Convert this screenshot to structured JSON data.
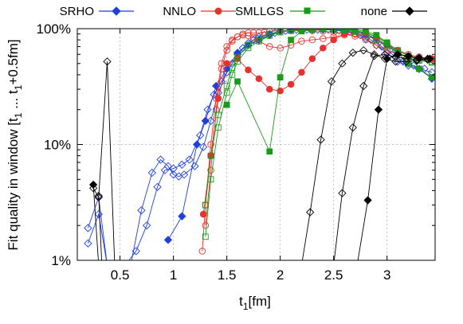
{
  "chart_data": {
    "type": "line",
    "title": "",
    "xlabel": "t",
    "xlabel_sub": "1",
    "xlabel_unit": "[fm]",
    "ylabel": "Fit quality in window [t",
    "ylabel_sub1": "1",
    "ylabel_mid": " ... t",
    "ylabel_sub2": "1",
    "ylabel_end": "+0.5fm]",
    "xlim": [
      0.1,
      3.45
    ],
    "ylim": [
      1,
      100
    ],
    "yscale": "log",
    "grid": true,
    "legend_position": "top",
    "x_ticks": [
      0.5,
      1,
      1.5,
      2,
      2.5,
      3
    ],
    "x_tick_labels": [
      "0.5",
      "1",
      "1.5",
      "2",
      "2.5",
      "3"
    ],
    "y_ticks": [
      1,
      10,
      100
    ],
    "y_tick_labels": [
      "1%",
      "10%",
      "100%"
    ],
    "series": [
      {
        "name": "SRHO",
        "color": "#1f3fdc",
        "marker": "diamond",
        "filled": true,
        "x": [
          0.95,
          1.08,
          1.22,
          1.3,
          1.4,
          1.5,
          1.6,
          1.7,
          1.8,
          1.9,
          2.0,
          2.1,
          2.2,
          2.3,
          2.4,
          2.5,
          2.6,
          2.7,
          2.8,
          2.9,
          3.0,
          3.1,
          3.2,
          3.3,
          3.42
        ],
        "y": [
          1.5,
          2.4,
          10,
          16,
          32,
          45,
          62,
          72,
          80,
          88,
          95,
          98,
          99,
          99,
          99,
          99,
          98,
          96,
          90,
          82,
          72,
          62,
          50,
          45,
          37
        ]
      },
      {
        "name": "",
        "color": "#1f3fdc",
        "marker": "diamond",
        "filled": false,
        "x": [
          0.2,
          0.3,
          0.38,
          0.5,
          0.6,
          0.7,
          0.8,
          0.88,
          0.95,
          1.0,
          1.05,
          1.1,
          1.2,
          1.28,
          1.35,
          1.42,
          1.5,
          1.6,
          1.7,
          1.8,
          1.9,
          2.0,
          2.1,
          2.2,
          2.3,
          2.4,
          2.5,
          2.6,
          2.7,
          2.8,
          2.9,
          3.0,
          3.1,
          3.2,
          3.3,
          3.42
        ],
        "y": [
          1.9,
          3.5,
          0.9,
          0.9,
          0.9,
          2.7,
          5.7,
          7.4,
          6.5,
          5.5,
          5.3,
          5.5,
          6.5,
          9.5,
          16,
          28,
          42,
          60,
          75,
          85,
          90,
          95,
          97,
          98,
          98,
          98,
          97,
          95,
          90,
          82,
          72,
          62,
          52,
          48,
          45,
          42
        ]
      },
      {
        "name": "",
        "color": "#1f3fdc",
        "marker": "diamond",
        "filled": false,
        "x": [
          0.2,
          0.3,
          0.38,
          0.55,
          0.65,
          0.75,
          0.85,
          0.92,
          1.0,
          1.08,
          1.15,
          1.25,
          1.32,
          1.38,
          1.45,
          1.55,
          1.65,
          1.75,
          1.85,
          1.95,
          2.05,
          2.15,
          2.25,
          2.35,
          2.45,
          2.55,
          2.65,
          2.75,
          2.85,
          2.95,
          3.05,
          3.15,
          3.25,
          3.35
        ],
        "y": [
          1.4,
          2.5,
          0.9,
          0.9,
          1.2,
          2.0,
          4.3,
          6.0,
          6.2,
          6.7,
          7.4,
          12,
          20,
          27,
          35,
          50,
          68,
          80,
          88,
          92,
          96,
          98,
          98,
          98,
          98,
          97,
          94,
          88,
          80,
          70,
          60,
          52,
          48,
          45
        ]
      },
      {
        "name": "NNLO",
        "color": "#e8302e",
        "marker": "circle",
        "filled": true,
        "x": [
          1.28,
          1.35,
          1.42,
          1.5,
          1.6,
          1.7,
          1.8,
          1.9,
          2.0,
          2.1,
          2.2,
          2.3,
          2.4,
          2.5,
          2.6,
          2.7,
          2.8,
          2.9,
          3.0,
          3.1,
          3.2,
          3.3,
          3.42
        ],
        "y": [
          2.5,
          8,
          25,
          50,
          55,
          44,
          37,
          30,
          29,
          33,
          42,
          55,
          68,
          80,
          90,
          95,
          93,
          85,
          75,
          65,
          58,
          56,
          55
        ]
      },
      {
        "name": "",
        "color": "#e8302e",
        "marker": "circle",
        "filled": false,
        "x": [
          1.27,
          1.3,
          1.35,
          1.4,
          1.45,
          1.5,
          1.55,
          1.6,
          1.65,
          1.7,
          1.75,
          1.8,
          1.9,
          2.0,
          2.1,
          2.2,
          2.3,
          2.4,
          2.5,
          2.6,
          2.7,
          2.8,
          2.9,
          3.0,
          3.1,
          3.2,
          3.3,
          3.42
        ],
        "y": [
          1.2,
          3,
          10,
          25,
          50,
          70,
          80,
          85,
          88,
          87,
          84,
          78,
          70,
          68,
          72,
          78,
          80,
          82,
          85,
          88,
          90,
          88,
          80,
          72,
          65,
          60,
          57,
          55
        ]
      },
      {
        "name": "",
        "color": "#e8302e",
        "marker": "circle",
        "filled": false,
        "x": [
          1.3,
          1.35,
          1.4,
          1.45,
          1.5,
          1.55,
          1.6,
          1.65,
          1.7,
          1.75,
          1.8,
          1.85,
          1.9,
          2.0,
          2.1,
          2.2,
          2.3,
          2.4,
          2.5,
          2.6,
          2.7,
          2.8,
          2.9,
          3.0,
          3.1,
          3.2,
          3.3,
          3.42
        ],
        "y": [
          2,
          6,
          20,
          45,
          65,
          78,
          85,
          90,
          92,
          92,
          92,
          93,
          95,
          96,
          96,
          96,
          96,
          95,
          93,
          90,
          86,
          80,
          72,
          65,
          60,
          57,
          55,
          54
        ]
      },
      {
        "name": "SMLLGS",
        "color": "#1a9a1a",
        "marker": "square",
        "filled": true,
        "x": [
          1.5,
          1.6,
          1.9,
          2.0,
          2.1,
          2.2,
          2.3,
          2.4,
          2.5,
          2.6,
          2.7,
          2.8,
          2.9,
          3.0,
          3.1,
          3.2,
          3.3,
          3.42
        ],
        "y": [
          22,
          35,
          8.7,
          38,
          80,
          95,
          98,
          99,
          99,
          99,
          98,
          95,
          88,
          76,
          62,
          50,
          45,
          38
        ]
      },
      {
        "name": "",
        "color": "#1a9a1a",
        "marker": "square",
        "filled": false,
        "x": [
          1.3,
          1.35,
          1.42,
          1.5,
          1.55,
          1.6,
          1.7,
          1.8,
          1.9,
          2.0,
          2.1,
          2.2,
          2.3,
          2.4,
          2.5,
          2.6,
          2.7,
          2.8,
          2.9,
          3.0,
          3.1,
          3.2,
          3.3,
          3.42
        ],
        "y": [
          1.6,
          5,
          14,
          28,
          40,
          52,
          68,
          78,
          87,
          93,
          96,
          98,
          99,
          99,
          99,
          98,
          96,
          92,
          85,
          75,
          65,
          58,
          54,
          52
        ]
      },
      {
        "name": "",
        "color": "#1a9a1a",
        "marker": "square",
        "filled": false,
        "x": [
          1.3,
          1.35,
          1.42,
          1.5,
          1.55,
          1.6,
          1.7,
          1.8,
          1.9,
          2.0,
          2.1,
          2.2,
          2.3,
          2.4,
          2.5,
          2.6,
          2.7,
          2.8,
          2.9,
          3.0,
          3.1,
          3.2,
          3.3,
          3.42
        ],
        "y": [
          3,
          8,
          18,
          32,
          46,
          57,
          72,
          82,
          90,
          95,
          97,
          99,
          99,
          99,
          98,
          97,
          94,
          88,
          80,
          70,
          62,
          56,
          53,
          51
        ]
      },
      {
        "name": "none",
        "color": "#000000",
        "marker": "diamond",
        "filled": true,
        "x": [
          0.25,
          0.3,
          2.72,
          2.82,
          2.92,
          3.0,
          3.1,
          3.2,
          3.3,
          3.4
        ],
        "y": [
          4.5,
          0.9,
          0.9,
          3.3,
          20,
          55,
          60,
          58,
          56,
          55
        ]
      },
      {
        "name": "",
        "color": "#000000",
        "marker": "diamond",
        "filled": false,
        "x": [
          0.25,
          0.3,
          0.38,
          0.45,
          0.55,
          2.2,
          2.28,
          2.38,
          2.48,
          2.58,
          2.68,
          2.78,
          2.88,
          2.98,
          3.08,
          3.18,
          3.28,
          3.38
        ],
        "y": [
          4.2,
          3.5,
          52,
          0.9,
          0.9,
          0.9,
          2.6,
          11,
          35,
          50,
          62,
          65,
          60,
          55,
          52,
          52,
          53,
          55
        ]
      },
      {
        "name": "",
        "color": "#000000",
        "marker": "diamond",
        "filled": false,
        "x": [
          0.3,
          0.33,
          2.5,
          2.58,
          2.68,
          2.78,
          2.88,
          2.98,
          3.08,
          3.18,
          3.28,
          3.38
        ],
        "y": [
          3.6,
          0.9,
          0.9,
          3.8,
          14,
          32,
          58,
          60,
          57,
          55,
          54,
          54
        ]
      }
    ]
  }
}
